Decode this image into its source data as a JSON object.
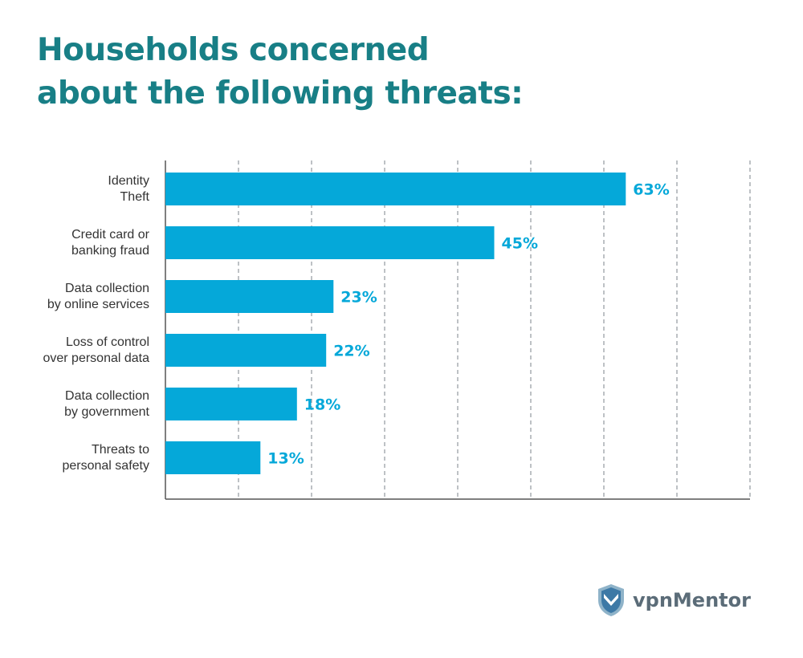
{
  "title_lines": [
    "Households concerned",
    "about the following threats:"
  ],
  "colors": {
    "title": "#187f86",
    "bar": "#05a8d9",
    "value_label": "#05a8d9",
    "grid": "#9aa0a6",
    "axis": "#555555"
  },
  "logo": {
    "part1": "vpn",
    "part2": "Mentor",
    "icon": "shield-icon"
  },
  "chart_data": {
    "type": "bar",
    "orientation": "horizontal",
    "title": "Households concerned about the following threats:",
    "categories": [
      [
        "Identity",
        "Theft"
      ],
      [
        "Credit card or",
        "banking fraud"
      ],
      [
        "Data collection",
        "by online services"
      ],
      [
        "Loss of control",
        "over personal data"
      ],
      [
        "Data collection",
        "by government"
      ],
      [
        "Threats to",
        "personal safety"
      ]
    ],
    "values": [
      63,
      45,
      23,
      22,
      18,
      13
    ],
    "value_labels": [
      "63%",
      "45%",
      "23%",
      "22%",
      "18%",
      "13%"
    ],
    "xlim": [
      0,
      80
    ],
    "grid_step": 10,
    "grid": true,
    "xlabel": "",
    "ylabel": ""
  }
}
